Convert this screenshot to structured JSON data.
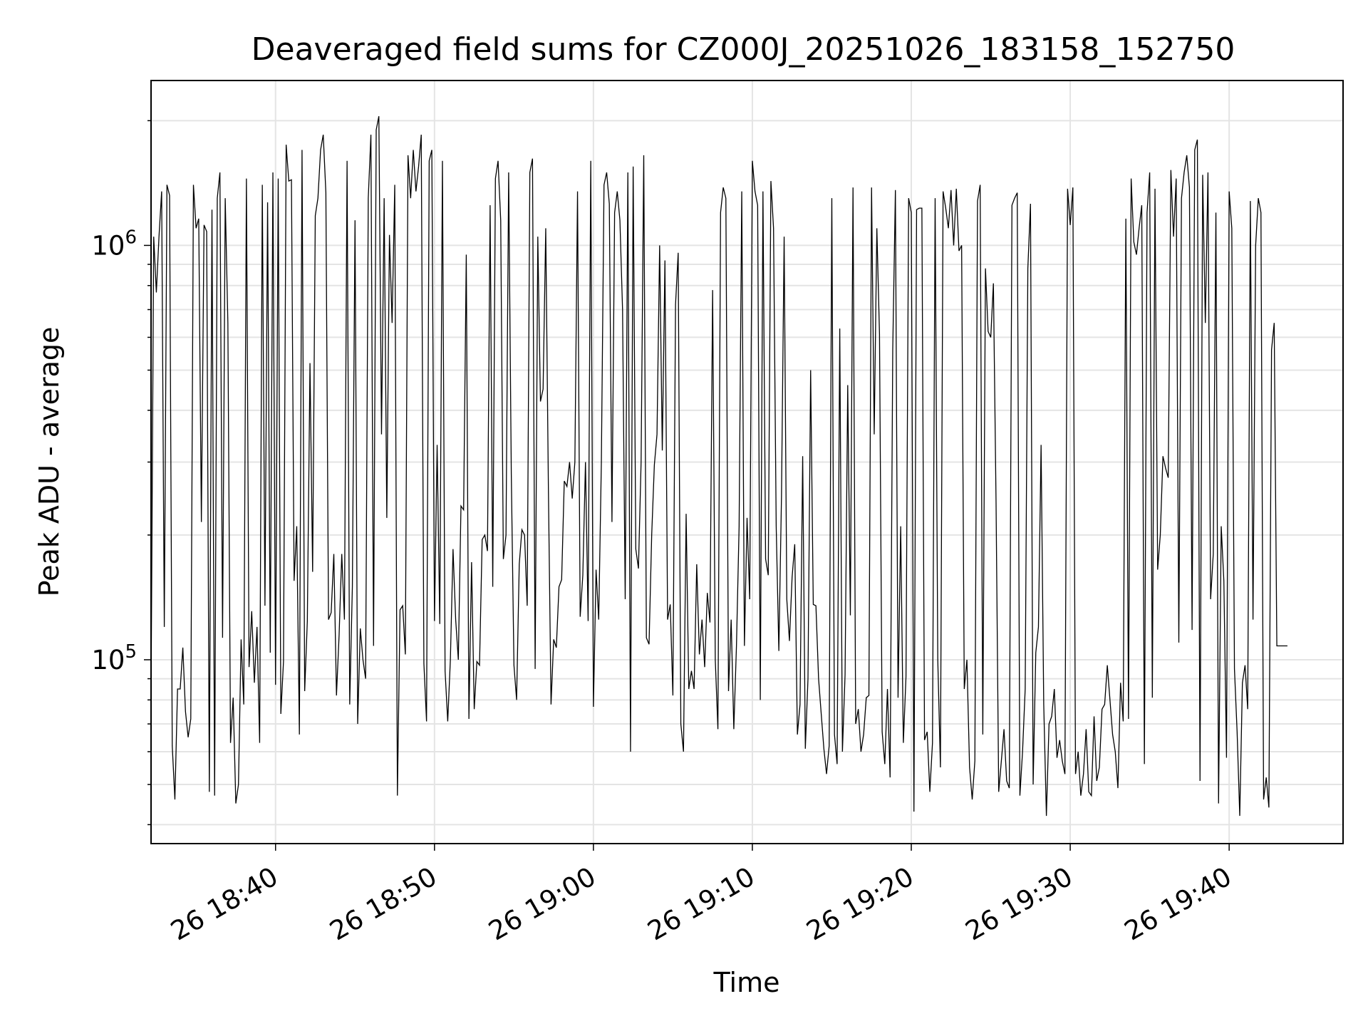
{
  "chart_data": {
    "type": "line",
    "title": "Deaveraged field sums for CZ000J_20251026_183158_152750",
    "xlabel": "Time",
    "ylabel": "Peak ADU - average",
    "yscale": "log",
    "ylim": [
      36000,
      2500000
    ],
    "xlim": [
      "2025-10-26 18:32:10",
      "2025-10-26 19:47:10"
    ],
    "grid": true,
    "line_color": "#000000",
    "x_ticks": [
      {
        "t": "2025-10-26 18:40:00",
        "label": "26 18:40"
      },
      {
        "t": "2025-10-26 18:50:00",
        "label": "26 18:50"
      },
      {
        "t": "2025-10-26 19:00:00",
        "label": "26 19:00"
      },
      {
        "t": "2025-10-26 19:10:00",
        "label": "26 19:10"
      },
      {
        "t": "2025-10-26 19:20:00",
        "label": "26 19:20"
      },
      {
        "t": "2025-10-26 19:30:00",
        "label": "26 19:30"
      },
      {
        "t": "2025-10-26 19:40:00",
        "label": "26 19:40"
      }
    ],
    "y_ticks": [
      {
        "v": 100000,
        "base": "10",
        "exp": "5"
      },
      {
        "v": 1000000,
        "base": "10",
        "exp": "6"
      }
    ],
    "series": [
      {
        "start": "2025-10-26 18:32:10",
        "step_seconds": 10,
        "values": [
          82000,
          1050000,
          770000,
          1050000,
          1350000,
          120000,
          1400000,
          1320000,
          62000,
          46000,
          85000,
          85000,
          107000,
          75000,
          65000,
          72000,
          1400000,
          1100000,
          1160000,
          215000,
          1120000,
          1080000,
          48000,
          1220000,
          47000,
          1300000,
          1500000,
          113000,
          1300000,
          650000,
          63000,
          81000,
          45000,
          50000,
          112000,
          78000,
          1450000,
          96000,
          131000,
          88000,
          120000,
          63000,
          1400000,
          135000,
          1270000,
          104000,
          1500000,
          87000,
          1450000,
          74000,
          99000,
          1750000,
          1430000,
          1440000,
          155000,
          210000,
          66000,
          1700000,
          84000,
          124000,
          520000,
          163000,
          1180000,
          1300000,
          1700000,
          1850000,
          1340000,
          125000,
          130000,
          180000,
          82000,
          115000,
          180000,
          125000,
          1600000,
          78000,
          150000,
          1150000,
          70000,
          119000,
          100000,
          90000,
          1300000,
          1850000,
          108000,
          1900000,
          2050000,
          350000,
          1300000,
          220000,
          1060000,
          650000,
          1400000,
          47000,
          132000,
          135000,
          103000,
          1650000,
          1300000,
          1700000,
          1350000,
          1550000,
          1850000,
          98000,
          71000,
          1600000,
          1700000,
          124000,
          330000,
          122000,
          1600000,
          94000,
          71000,
          100000,
          185000,
          125000,
          100000,
          235000,
          230000,
          950000,
          72000,
          172000,
          76000,
          99000,
          97000,
          195000,
          200000,
          183000,
          1250000,
          150000,
          1450000,
          1600000,
          1150000,
          175000,
          200000,
          1500000,
          280000,
          97000,
          80000,
          170000,
          206000,
          200000,
          135000,
          1500000,
          1620000,
          95000,
          1050000,
          420000,
          450000,
          1100000,
          260000,
          78000,
          112000,
          107000,
          150000,
          156000,
          270000,
          262000,
          300000,
          245000,
          300000,
          1350000,
          127000,
          160000,
          300000,
          124000,
          1600000,
          77000,
          165000,
          125000,
          300000,
          1400000,
          1500000,
          1260000,
          215000,
          1200000,
          1350000,
          1150000,
          700000,
          140000,
          1500000,
          60000,
          1550000,
          185000,
          166000,
          300000,
          1650000,
          113000,
          109000,
          200000,
          295000,
          350000,
          1000000,
          320000,
          920000,
          125000,
          136000,
          82000,
          720000,
          960000,
          70000,
          60000,
          225000,
          85000,
          94000,
          85000,
          170000,
          103000,
          125000,
          96000,
          145000,
          123000,
          780000,
          100000,
          68000,
          1200000,
          1380000,
          1300000,
          84000,
          125000,
          68000,
          108000,
          210000,
          1350000,
          108000,
          220000,
          140000,
          1600000,
          1350000,
          1250000,
          80000,
          1350000,
          175000,
          160000,
          1430000,
          1100000,
          210000,
          105000,
          248000,
          1050000,
          140000,
          111000,
          158000,
          190000,
          66000,
          78000,
          310000,
          61000,
          90000,
          500000,
          136000,
          135000,
          90000,
          74000,
          61000,
          53000,
          62000,
          1300000,
          66000,
          56000,
          630000,
          60000,
          92000,
          460000,
          128000,
          1380000,
          70000,
          76000,
          60000,
          66000,
          81000,
          82000,
          1380000,
          350000,
          1100000,
          610000,
          67000,
          56000,
          85000,
          52000,
          560000,
          1360000,
          81000,
          210000,
          63000,
          91000,
          1300000,
          1200000,
          43000,
          1220000,
          1230000,
          1230000,
          64000,
          67000,
          48000,
          63000,
          1300000,
          100000,
          55000,
          1350000,
          1230000,
          1100000,
          1360000,
          1000000,
          1370000,
          970000,
          1000000,
          85000,
          100000,
          55000,
          46000,
          57000,
          1280000,
          1400000,
          66000,
          880000,
          620000,
          600000,
          810000,
          240000,
          48000,
          57000,
          68000,
          51000,
          49000,
          1250000,
          1300000,
          1340000,
          47000,
          60000,
          85000,
          880000,
          1260000,
          50000,
          104000,
          120000,
          330000,
          78000,
          42000,
          70000,
          73000,
          85000,
          58000,
          64000,
          57000,
          53000,
          1370000,
          1120000,
          1380000,
          53000,
          60000,
          47000,
          53000,
          68000,
          48000,
          47000,
          73000,
          51000,
          55000,
          76000,
          78000,
          97000,
          80000,
          66000,
          60000,
          49000,
          88000,
          71000,
          1160000,
          72000,
          1450000,
          1020000,
          950000,
          1100000,
          1250000,
          56000,
          1200000,
          1500000,
          81000,
          1370000,
          165000,
          200000,
          310000,
          290000,
          275000,
          1520000,
          1050000,
          1450000,
          110000,
          1300000,
          1500000,
          1650000,
          1380000,
          118000,
          1700000,
          1800000,
          51000,
          1480000,
          650000,
          1500000,
          140000,
          180000,
          1200000,
          45000,
          210000,
          155000,
          58000,
          1350000,
          1100000,
          95000,
          67000,
          42000,
          88000,
          97000,
          76000,
          1280000,
          125000,
          1000000,
          1300000,
          1200000,
          46000,
          52000,
          44000,
          560000,
          650000,
          108000,
          108000,
          108000,
          108000,
          108000
        ]
      }
    ]
  }
}
